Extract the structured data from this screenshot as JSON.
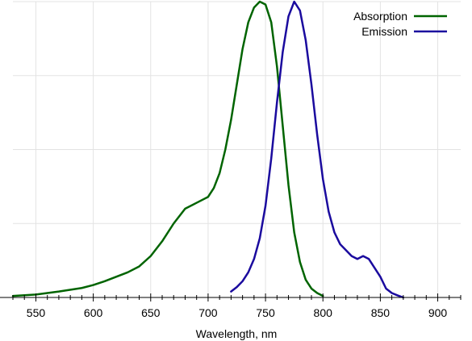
{
  "chart_data": {
    "type": "line",
    "title": "",
    "xlabel": "Wavelength, nm",
    "ylabel": "",
    "xlim": [
      530,
      920
    ],
    "ylim": [
      0,
      1.0
    ],
    "grid": true,
    "legend_position": "top-right",
    "x_ticks": [
      550,
      600,
      650,
      700,
      750,
      800,
      850,
      900
    ],
    "x_tick_labels": [
      "550",
      "600",
      "650",
      "700",
      "750",
      "800",
      "850",
      "900"
    ],
    "series": [
      {
        "name": "Absorption",
        "color": "#006400",
        "x": [
          530,
          550,
          570,
          590,
          600,
          610,
          620,
          630,
          640,
          650,
          660,
          670,
          680,
          690,
          700,
          705,
          710,
          715,
          720,
          725,
          730,
          735,
          740,
          745,
          750,
          755,
          760,
          765,
          770,
          775,
          780,
          785,
          790,
          795,
          800
        ],
        "y": [
          0.005,
          0.01,
          0.02,
          0.032,
          0.042,
          0.055,
          0.07,
          0.085,
          0.105,
          0.14,
          0.19,
          0.25,
          0.3,
          0.32,
          0.34,
          0.37,
          0.42,
          0.5,
          0.6,
          0.72,
          0.84,
          0.93,
          0.98,
          1.0,
          0.99,
          0.93,
          0.78,
          0.58,
          0.38,
          0.22,
          0.12,
          0.06,
          0.03,
          0.015,
          0.005
        ]
      },
      {
        "name": "Emission",
        "color": "#1a0a9e",
        "x": [
          720,
          725,
          730,
          735,
          740,
          745,
          750,
          755,
          760,
          765,
          770,
          775,
          780,
          785,
          790,
          795,
          800,
          805,
          810,
          815,
          820,
          825,
          830,
          835,
          840,
          845,
          850,
          855,
          860,
          865,
          870
        ],
        "y": [
          0.02,
          0.035,
          0.055,
          0.085,
          0.13,
          0.2,
          0.31,
          0.47,
          0.66,
          0.83,
          0.95,
          1.0,
          0.97,
          0.87,
          0.72,
          0.55,
          0.4,
          0.29,
          0.22,
          0.18,
          0.16,
          0.14,
          0.13,
          0.14,
          0.13,
          0.1,
          0.07,
          0.03,
          0.015,
          0.007,
          0.0
        ]
      }
    ]
  }
}
